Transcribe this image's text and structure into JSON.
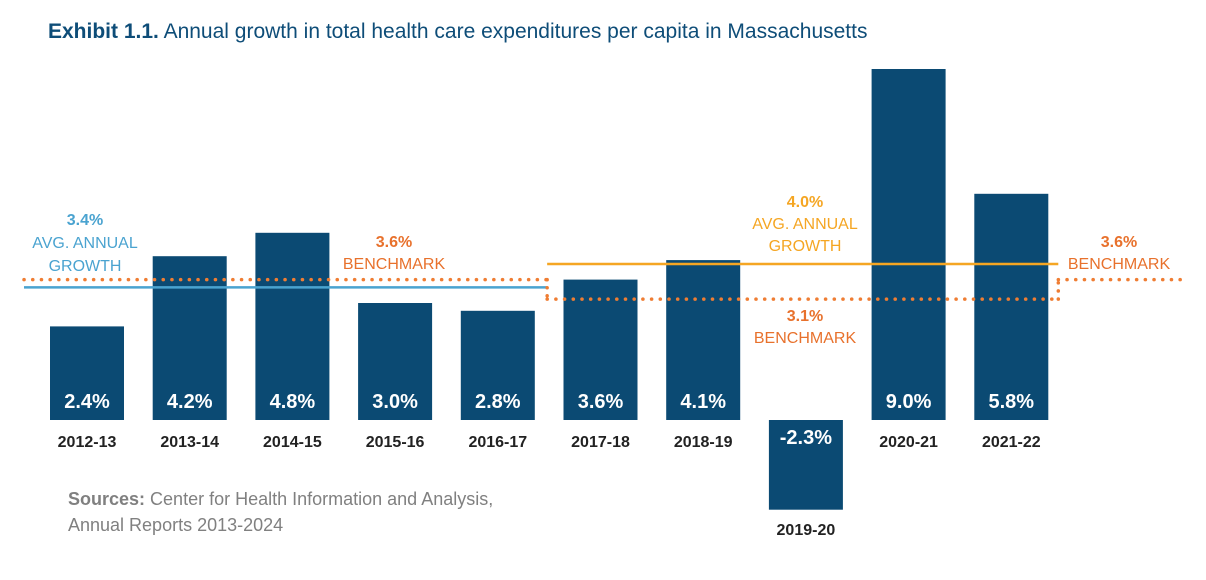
{
  "title": {
    "prefix": "Exhibit 1.1.",
    "text": "Annual growth in total health care expenditures per capita in Massachusetts"
  },
  "sources": {
    "label": "Sources:",
    "text": "Center for Health Information and Analysis, Annual Reports 2013-2024"
  },
  "colors": {
    "bar": "#0b4a73",
    "avg_early": "#4aa3d0",
    "avg_late": "#f5a623",
    "benchmark": "#ef7d33",
    "label_dark": "#222222",
    "benchmark_text": "#e8712c"
  },
  "chart_data": {
    "type": "bar",
    "title": "Annual growth in total health care expenditures per capita in Massachusetts",
    "unit": "%",
    "categories": [
      "2012-13",
      "2013-14",
      "2014-15",
      "2015-16",
      "2016-17",
      "2017-18",
      "2018-19",
      "2019-20",
      "2020-21",
      "2021-22"
    ],
    "values": [
      2.4,
      4.2,
      4.8,
      3.0,
      2.8,
      3.6,
      4.1,
      -2.3,
      9.0,
      5.8
    ],
    "value_labels": [
      "2.4%",
      "4.2%",
      "4.8%",
      "3.0%",
      "2.8%",
      "3.6%",
      "4.1%",
      "-2.3%",
      "9.0%",
      "5.8%"
    ],
    "ylim": [
      -2.3,
      9.0
    ],
    "grid": false,
    "reference_lines": [
      {
        "name": "avg-annual-growth-2013-2019",
        "value": 3.4,
        "style": "solid",
        "color": "avg_early",
        "from_index": 0,
        "to_index": 4,
        "labels": [
          "3.4%",
          "AVG. ANNUAL",
          "GROWTH"
        ]
      },
      {
        "name": "benchmark-early",
        "value": 3.6,
        "style": "dotted",
        "color": "benchmark",
        "from_index": 0,
        "to_index": 4,
        "labels": [
          "3.6%",
          "BENCHMARK"
        ]
      },
      {
        "name": "avg-annual-growth-2018-2022",
        "value": 4.0,
        "style": "solid",
        "color": "avg_late",
        "from_index": 5,
        "to_index": 9,
        "labels": [
          "4.0%",
          "AVG. ANNUAL",
          "GROWTH"
        ]
      },
      {
        "name": "benchmark-mid",
        "value": 3.1,
        "style": "dotted",
        "color": "benchmark",
        "from_index": 5,
        "to_index": 9,
        "labels": [
          "3.1%",
          "BENCHMARK"
        ]
      },
      {
        "name": "benchmark-late",
        "value": 3.6,
        "style": "dotted",
        "color": "benchmark",
        "from_index": 10,
        "to_index": 10,
        "labels": [
          "3.6%",
          "BENCHMARK"
        ]
      }
    ]
  }
}
